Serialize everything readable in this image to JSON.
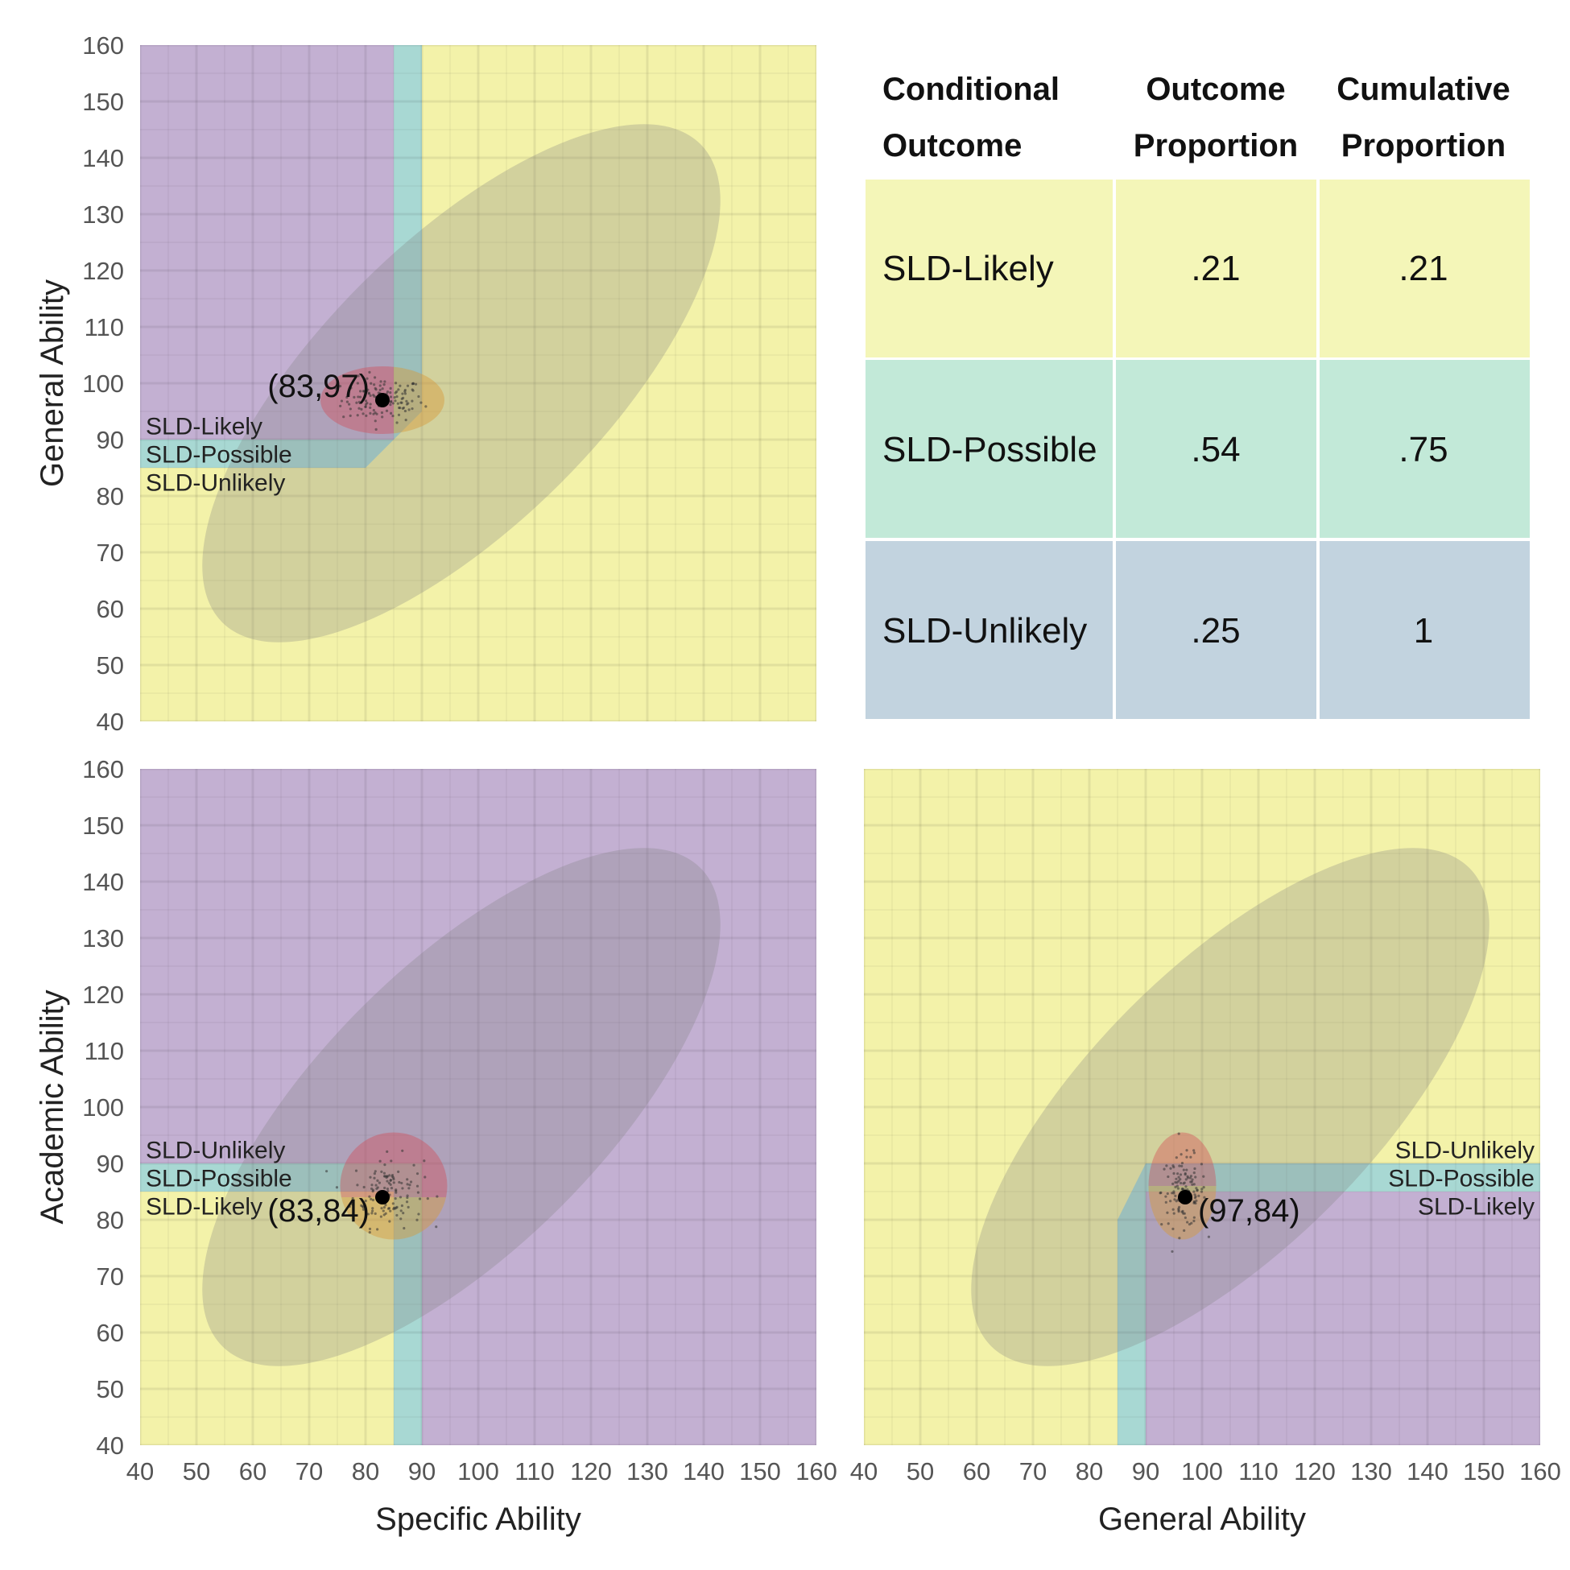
{
  "colors": {
    "likely": "#c3b0d2",
    "possible": "#a8d8d3",
    "unlikely": "#f3f2a9",
    "grid": "#ffffff",
    "ellipse": "#7f7f7f",
    "red": "#d6454e",
    "orange": "#d89a3a",
    "point": "#000000",
    "table_likely": "#f4f6b8",
    "table_possible": "#c2e9d8",
    "table_unlikely": "#c2d3df"
  },
  "chart_data": [
    {
      "type": "scatter",
      "id": "tl",
      "xlabel": "",
      "ylabel": "General Ability",
      "xlim": [
        40,
        160
      ],
      "ylim": [
        40,
        160
      ],
      "xticks": [],
      "yticks": [
        "40",
        "50",
        "60",
        "70",
        "80",
        "90",
        "100",
        "110",
        "120",
        "130",
        "140",
        "150",
        "160"
      ],
      "base_region": "unlikely",
      "regions": [
        {
          "outcome": "likely",
          "polygon": [
            [
              40,
              90
            ],
            [
              85,
              90
            ],
            [
              85,
              160
            ],
            [
              40,
              160
            ]
          ]
        },
        {
          "outcome": "possible",
          "polygon": [
            [
              40,
              85
            ],
            [
              80,
              85
            ],
            [
              85,
              90
            ],
            [
              85,
              160
            ],
            [
              90,
              160
            ],
            [
              90,
              95
            ],
            [
              85,
              90
            ],
            [
              40,
              90
            ]
          ]
        }
      ],
      "region_labels": [
        {
          "text": "SLD-Likely",
          "x": 41,
          "y": 92.5,
          "anchor": "start"
        },
        {
          "text": "SLD-Possible",
          "x": 41,
          "y": 87.5,
          "anchor": "start"
        },
        {
          "text": "SLD-Unlikely",
          "x": 41,
          "y": 82.5,
          "anchor": "start"
        }
      ],
      "big_ellipse": {
        "cx": 97,
        "cy": 100,
        "rx": 60,
        "ry": 25,
        "angle_deg": 45
      },
      "small_ellipse": {
        "cx": 83,
        "cy": 97,
        "rx": 11,
        "ry": 6,
        "split_x": 85
      },
      "point": {
        "x": 83,
        "y": 97,
        "label": "(83,97)",
        "label_side": "left"
      }
    },
    {
      "type": "scatter",
      "id": "bl",
      "xlabel": "Specific Ability",
      "ylabel": "Academic Ability",
      "xlim": [
        40,
        160
      ],
      "ylim": [
        40,
        160
      ],
      "xticks": [
        "40",
        "50",
        "60",
        "70",
        "80",
        "90",
        "100",
        "110",
        "120",
        "130",
        "140",
        "150",
        "160"
      ],
      "yticks": [
        "40",
        "50",
        "60",
        "70",
        "80",
        "90",
        "100",
        "110",
        "120",
        "130",
        "140",
        "150",
        "160"
      ],
      "base_region": "likely",
      "regions": [
        {
          "outcome": "unlikely",
          "polygon": [
            [
              40,
              40
            ],
            [
              85,
              40
            ],
            [
              85,
              85
            ],
            [
              40,
              85
            ]
          ]
        },
        {
          "outcome": "possible",
          "polygon": [
            [
              40,
              85
            ],
            [
              85,
              85
            ],
            [
              85,
              40
            ],
            [
              90,
              40
            ],
            [
              90,
              90
            ],
            [
              40,
              90
            ]
          ]
        }
      ],
      "region_labels": [
        {
          "text": "SLD-Unlikely",
          "x": 41,
          "y": 92.5,
          "anchor": "start"
        },
        {
          "text": "SLD-Possible",
          "x": 41,
          "y": 87.5,
          "anchor": "start"
        },
        {
          "text": "SLD-Likely",
          "x": 41,
          "y": 82.5,
          "anchor": "start"
        }
      ],
      "big_ellipse": {
        "cx": 97,
        "cy": 100,
        "rx": 60,
        "ry": 25,
        "angle_deg": 45
      },
      "small_ellipse": {
        "cx": 85,
        "cy": 86,
        "rx": 9.5,
        "ry": 9.5,
        "split_y": 84
      },
      "point": {
        "x": 83,
        "y": 84,
        "label": "(83,84)",
        "label_side": "left"
      }
    },
    {
      "type": "scatter",
      "id": "br",
      "xlabel": "General Ability",
      "ylabel": "",
      "xlim": [
        40,
        160
      ],
      "ylim": [
        40,
        160
      ],
      "xticks": [
        "40",
        "50",
        "60",
        "70",
        "80",
        "90",
        "100",
        "110",
        "120",
        "130",
        "140",
        "150",
        "160"
      ],
      "yticks": [],
      "base_region": "unlikely",
      "regions": [
        {
          "outcome": "likely",
          "polygon": [
            [
              90,
              40
            ],
            [
              160,
              40
            ],
            [
              160,
              85
            ],
            [
              90,
              85
            ]
          ]
        },
        {
          "outcome": "possible",
          "polygon": [
            [
              85,
              40
            ],
            [
              90,
              40
            ],
            [
              90,
              85
            ],
            [
              160,
              85
            ],
            [
              160,
              90
            ],
            [
              90,
              90
            ],
            [
              85,
              80
            ]
          ]
        }
      ],
      "region_labels": [
        {
          "text": "SLD-Unlikely",
          "x": 159,
          "y": 92.5,
          "anchor": "end"
        },
        {
          "text": "SLD-Possible",
          "x": 159,
          "y": 87.5,
          "anchor": "end"
        },
        {
          "text": "SLD-Likely",
          "x": 159,
          "y": 82.5,
          "anchor": "end"
        }
      ],
      "big_ellipse": {
        "cx": 105,
        "cy": 100,
        "rx": 60,
        "ry": 25,
        "angle_deg": 45
      },
      "small_ellipse": {
        "cx": 96.5,
        "cy": 86,
        "rx": 6,
        "ry": 9.5,
        "split_y": 86
      },
      "point": {
        "x": 97,
        "y": 84,
        "label": "(97,84)",
        "label_side": "right"
      }
    }
  ],
  "table": {
    "headers": [
      {
        "line1": "Conditional",
        "line2": "Outcome"
      },
      {
        "line1": "Outcome",
        "line2": "Proportion"
      },
      {
        "line1": "Cumulative",
        "line2": "Proportion"
      }
    ],
    "rows": [
      {
        "outcome": "SLD-Likely",
        "proportion": ".21",
        "cumulative": ".21",
        "color_key": "table_likely"
      },
      {
        "outcome": "SLD-Possible",
        "proportion": ".54",
        "cumulative": ".75",
        "color_key": "table_possible"
      },
      {
        "outcome": "SLD-Unlikely",
        "proportion": ".25",
        "cumulative": "1",
        "color_key": "table_unlikely"
      }
    ]
  }
}
